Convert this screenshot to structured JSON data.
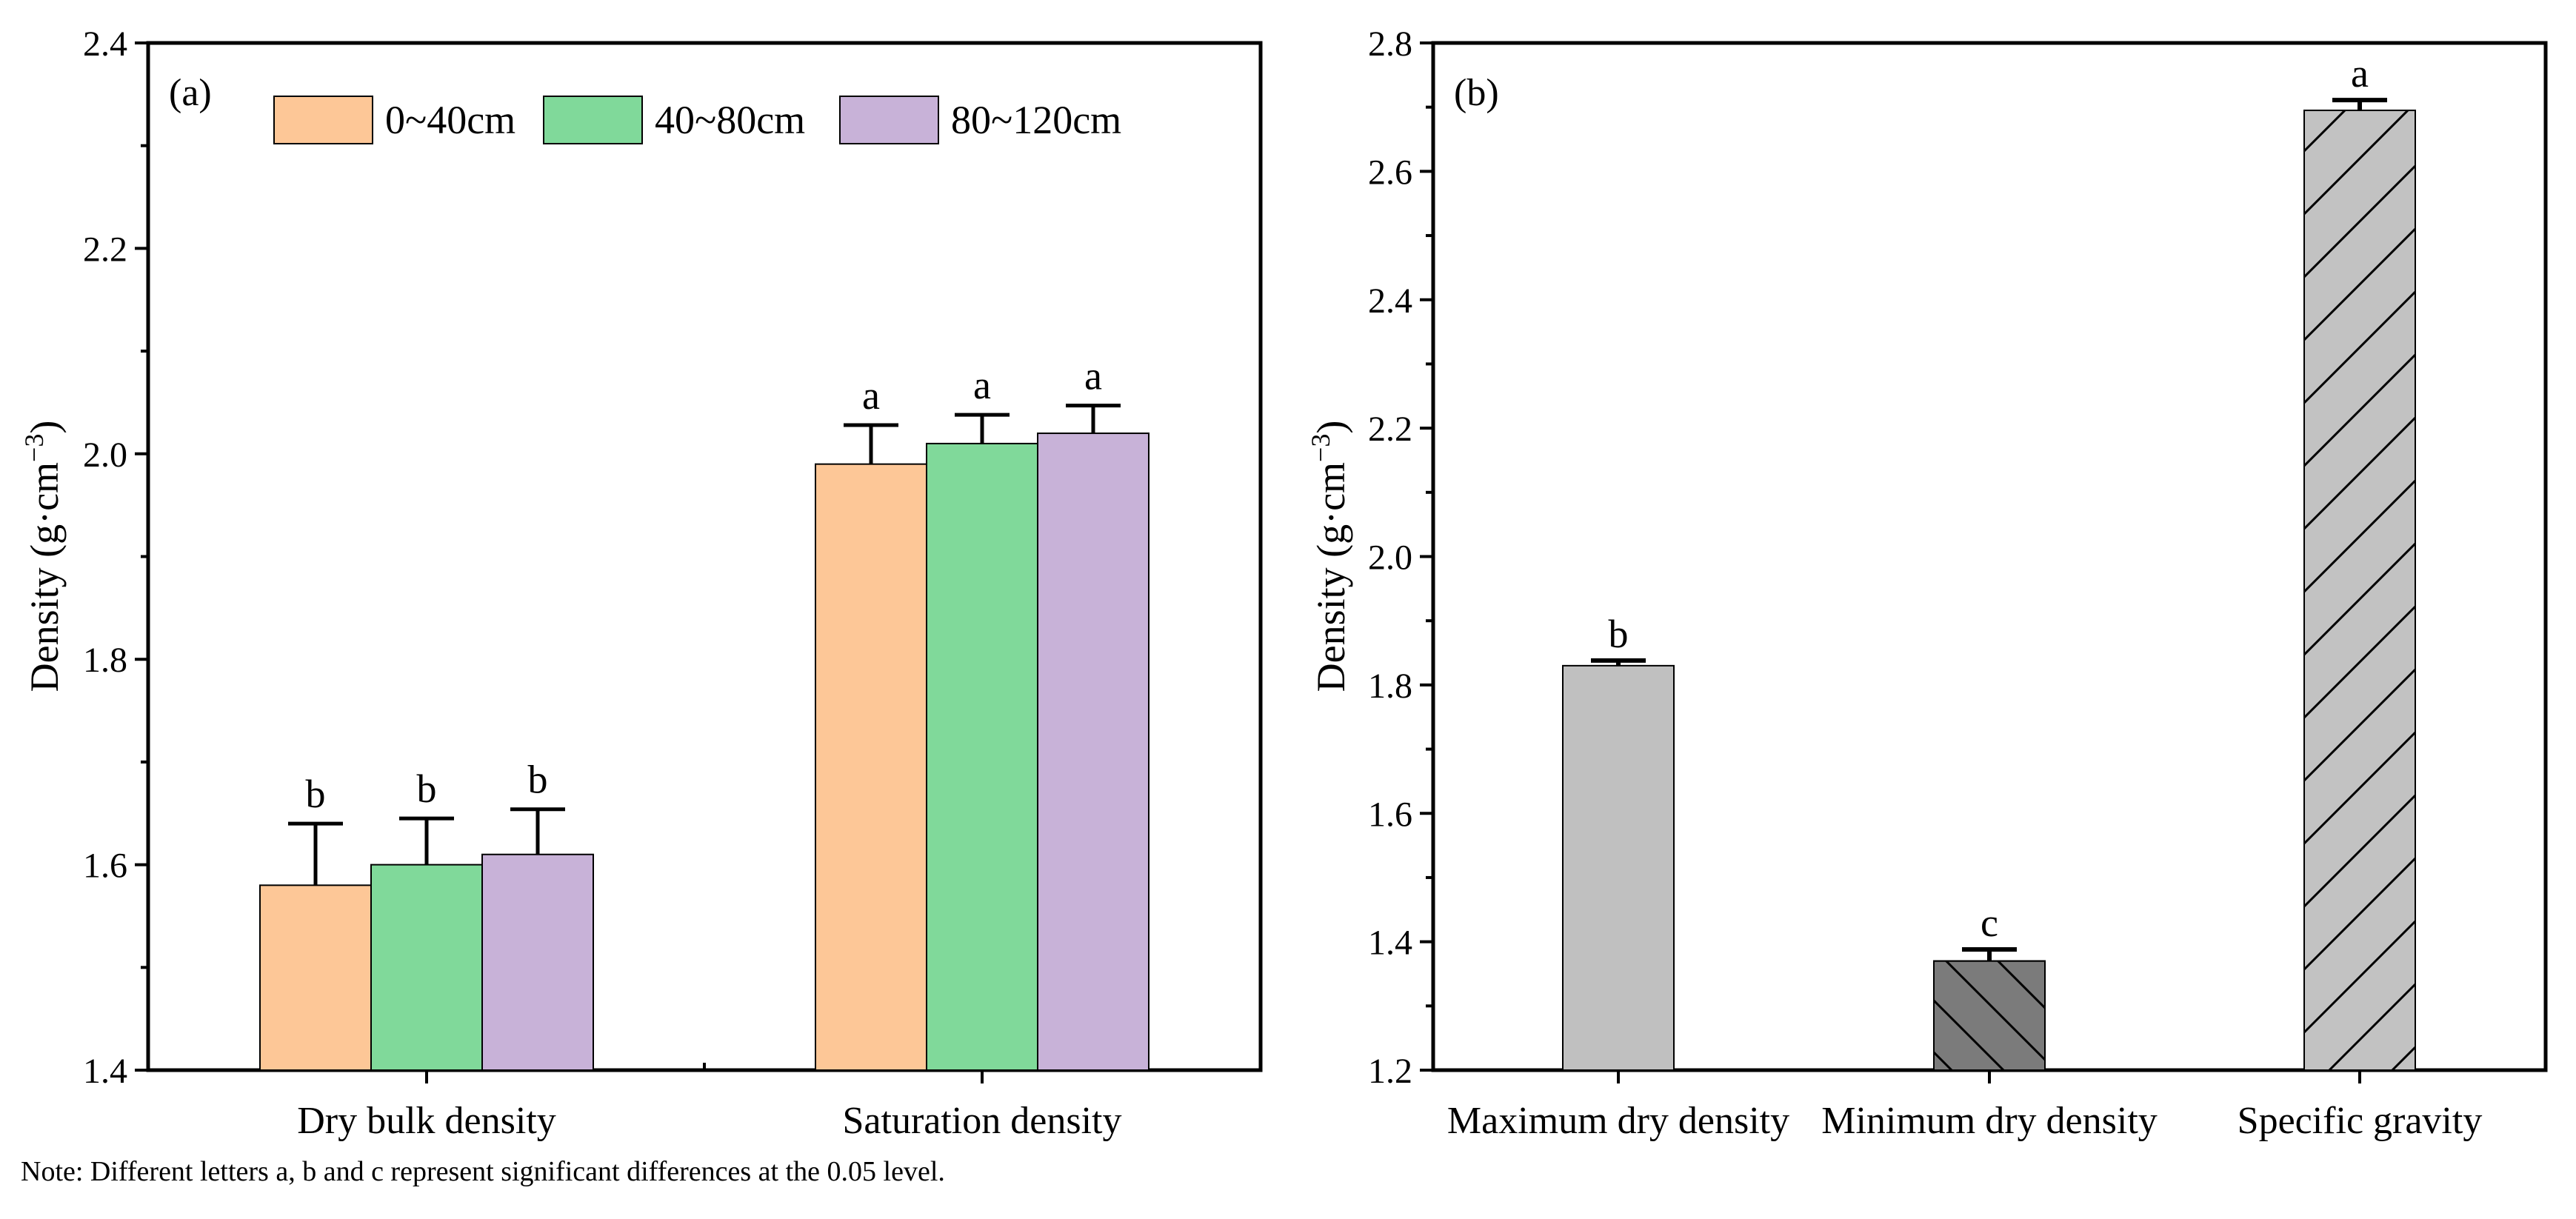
{
  "colors": {
    "d0_40": "#FDC797",
    "d40_80": "#80D99A",
    "d80_120": "#C8B2D8",
    "light_gray": "#C0C0C0",
    "dark_gray": "#7B7B7B",
    "hatch_gray": "#C2C2C2"
  },
  "note": "Note: Different letters a, b and c represent significant differences at the 0.05 level.",
  "chart_data": [
    {
      "panel_label": "(a)",
      "type": "bar",
      "ylabel": "Density (g·cm",
      "ylabel_sup": "−3",
      "ylabel_close": ")",
      "ylim": [
        1.4,
        2.4
      ],
      "yticks": [
        "1.4",
        "1.6",
        "1.8",
        "2.0",
        "2.2",
        "2.4"
      ],
      "categories": [
        "Dry bulk density",
        "Saturation density"
      ],
      "series": [
        {
          "name": "0~40cm",
          "color": "#FDC797",
          "values": [
            1.58,
            1.99
          ],
          "errors": [
            0.06,
            0.038
          ],
          "letters": [
            "b",
            "a"
          ]
        },
        {
          "name": "40~80cm",
          "color": "#80D99A",
          "values": [
            1.6,
            2.01
          ],
          "errors": [
            0.045,
            0.028
          ],
          "letters": [
            "b",
            "a"
          ]
        },
        {
          "name": "80~120cm",
          "color": "#C8B2D8",
          "values": [
            1.61,
            2.02
          ],
          "errors": [
            0.044,
            0.027
          ],
          "letters": [
            "b",
            "a"
          ]
        }
      ],
      "legend": "top"
    },
    {
      "panel_label": "(b)",
      "type": "bar",
      "ylabel": "Density (g·cm",
      "ylabel_sup": "−3",
      "ylabel_close": ")",
      "ylim": [
        1.2,
        2.8
      ],
      "yticks": [
        "1.2",
        "1.4",
        "1.6",
        "1.8",
        "2.0",
        "2.2",
        "2.4",
        "2.6",
        "2.8"
      ],
      "categories": [
        "Maximum dry density",
        "Minimum dry density",
        "Specific gravity"
      ],
      "values": [
        1.83,
        1.37,
        2.695
      ],
      "errors": [
        0.008,
        0.018,
        0.016
      ],
      "letters": [
        "b",
        "c",
        "a"
      ],
      "bar_colors": [
        "#C0C0C0",
        "#7B7B7B",
        "#C2C2C2"
      ],
      "patterns": [
        "none",
        "back-diagonal",
        "forward-diagonal"
      ]
    }
  ]
}
